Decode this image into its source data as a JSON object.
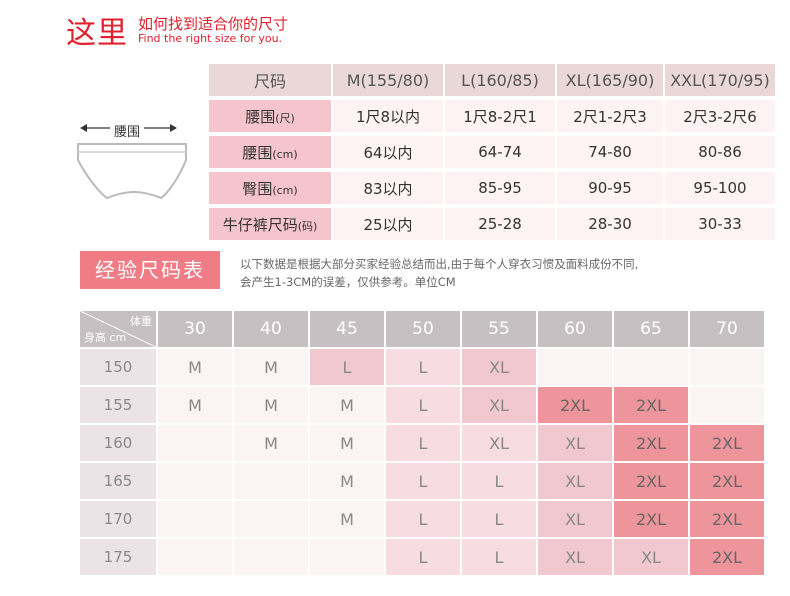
{
  "header": {
    "title": "这里",
    "subtitle_cn": "如何找到适合你的尺寸",
    "subtitle_en": "Find the right size for you."
  },
  "illustration": {
    "label": "腰围"
  },
  "size_table": {
    "headers": [
      "尺码",
      "M(155/80)",
      "L(160/85)",
      "XL(165/90)",
      "XXL(170/95)"
    ],
    "rows": [
      {
        "label": "腰围",
        "unit": "(尺)",
        "values": [
          "1尺8以内",
          "1尺8-2尺1",
          "2尺1-2尺3",
          "2尺3-2尺6"
        ]
      },
      {
        "label": "腰围",
        "unit": "(cm)",
        "values": [
          "64以内",
          "64-74",
          "74-80",
          "80-86"
        ]
      },
      {
        "label": "臀围",
        "unit": "(cm)",
        "values": [
          "83以内",
          "85-95",
          "90-95",
          "95-100"
        ]
      },
      {
        "label": "牛仔裤尺码",
        "unit": "(码)",
        "values": [
          "25以内",
          "25-28",
          "28-30",
          "30-33"
        ]
      }
    ]
  },
  "experience": {
    "title": "经验尺码表",
    "note_line1": "以下数据是根据大部分买家经验总结而出,由于每个人穿衣习惯及面料成份不同,",
    "note_line2": "会产生1-3CM的误差，仅供参考。单位CM",
    "corner_top": "体重",
    "corner_bottom": "身高 cm",
    "weights": [
      "30",
      "40",
      "45",
      "50",
      "55",
      "60",
      "65",
      "70"
    ],
    "rows": [
      {
        "height": "150",
        "cells": [
          [
            "M",
            0
          ],
          [
            "M",
            0
          ],
          [
            "L",
            2
          ],
          [
            "L",
            1
          ],
          [
            "XL",
            2
          ],
          [
            "",
            0
          ],
          [
            "",
            0
          ],
          [
            "",
            0
          ]
        ]
      },
      {
        "height": "155",
        "cells": [
          [
            "M",
            0
          ],
          [
            "M",
            0
          ],
          [
            "M",
            0
          ],
          [
            "L",
            1
          ],
          [
            "XL",
            2
          ],
          [
            "2XL",
            3
          ],
          [
            "2XL",
            3
          ],
          [
            "",
            0
          ]
        ]
      },
      {
        "height": "160",
        "cells": [
          [
            "",
            0
          ],
          [
            "M",
            0
          ],
          [
            "M",
            0
          ],
          [
            "L",
            1
          ],
          [
            "XL",
            1
          ],
          [
            "XL",
            2
          ],
          [
            "2XL",
            3
          ],
          [
            "2XL",
            3
          ]
        ]
      },
      {
        "height": "165",
        "cells": [
          [
            "",
            0
          ],
          [
            "",
            0
          ],
          [
            "M",
            0
          ],
          [
            "L",
            1
          ],
          [
            "L",
            1
          ],
          [
            "XL",
            2
          ],
          [
            "2XL",
            3
          ],
          [
            "2XL",
            3
          ]
        ]
      },
      {
        "height": "170",
        "cells": [
          [
            "",
            0
          ],
          [
            "",
            0
          ],
          [
            "M",
            0
          ],
          [
            "L",
            1
          ],
          [
            "L",
            1
          ],
          [
            "XL",
            2
          ],
          [
            "2XL",
            3
          ],
          [
            "2XL",
            3
          ]
        ]
      },
      {
        "height": "175",
        "cells": [
          [
            "",
            0
          ],
          [
            "",
            0
          ],
          [
            "",
            0
          ],
          [
            "L",
            1
          ],
          [
            "L",
            1
          ],
          [
            "XL",
            2
          ],
          [
            "XL",
            2
          ],
          [
            "2XL",
            3
          ]
        ]
      }
    ]
  },
  "colors": {
    "accent_red": "#e0222e",
    "title_pink": "#f07c85",
    "header_gray": "#c7c0c3"
  }
}
